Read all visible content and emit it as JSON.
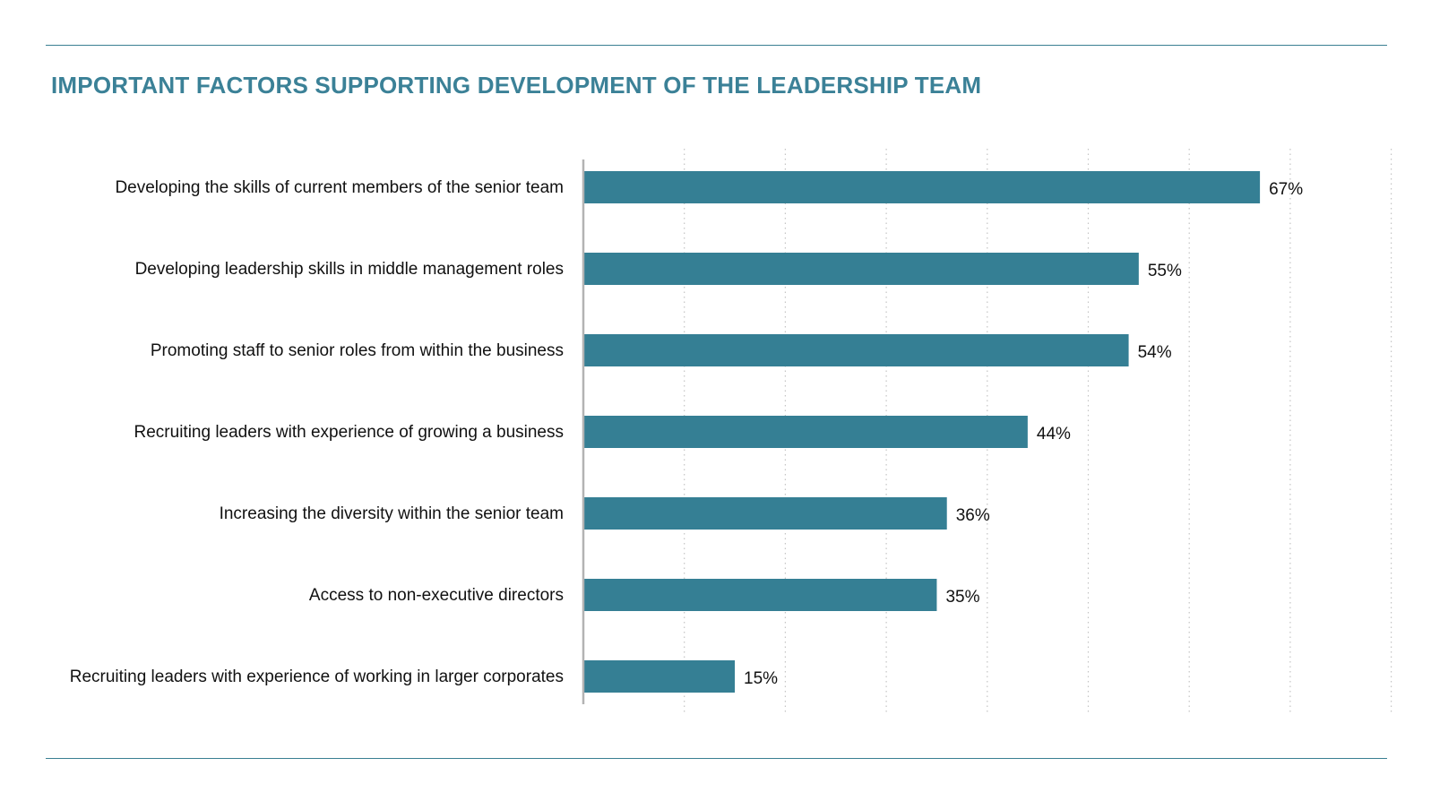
{
  "chart_data": {
    "type": "bar",
    "orientation": "horizontal",
    "title": "IMPORTANT FACTORS SUPPORTING DEVELOPMENT OF THE LEADERSHIP TEAM",
    "categories": [
      "Developing the skills of current members of the senior team",
      "Developing leadership skills in middle management roles",
      "Promoting staff to senior roles from within the business",
      "Recruiting leaders with experience of growing a business",
      "Increasing the diversity within the senior team",
      "Access to non-executive directors",
      "Recruiting leaders with experience of working in larger corporates"
    ],
    "values": [
      67,
      55,
      54,
      44,
      36,
      35,
      15
    ],
    "value_labels": [
      "67%",
      "55%",
      "54%",
      "44%",
      "36%",
      "35%",
      "15%"
    ],
    "xlim": [
      0,
      80
    ],
    "grid": "vertical dotted",
    "bar_color": "#357f94",
    "axis_color": "#b3b3b3",
    "accent_color": "#3b8197"
  }
}
